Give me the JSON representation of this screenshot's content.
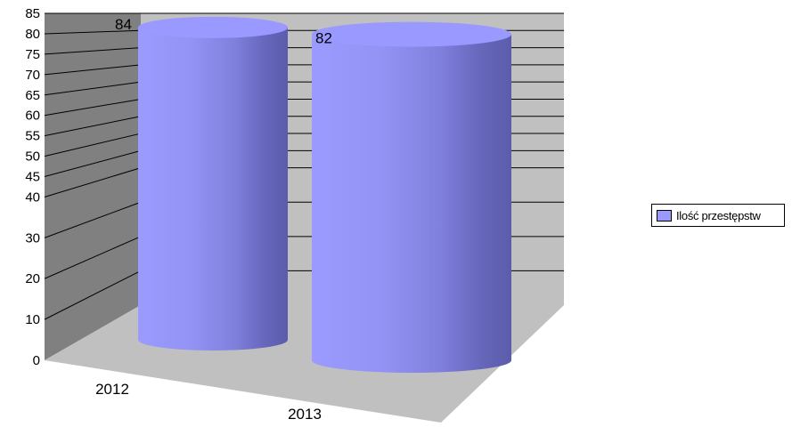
{
  "chart_data": {
    "type": "bar",
    "style": "3d-cylinder",
    "categories": [
      "2012",
      "2013"
    ],
    "series": [
      {
        "name": "Ilość przestępstw",
        "values": [
          84,
          82
        ],
        "color": "#9999ff"
      }
    ],
    "data_labels": [
      "84",
      "82"
    ],
    "y_ticks": [
      "0",
      "10",
      "20",
      "30",
      "40",
      "45",
      "50",
      "55",
      "60",
      "65",
      "70",
      "75",
      "80",
      "85"
    ],
    "ylim": [
      0,
      85
    ],
    "grid": true,
    "legend": "right",
    "wall_color": "#c0c0c0",
    "side_wall_color": "#808080",
    "floor_color": "#c0c0c0"
  }
}
